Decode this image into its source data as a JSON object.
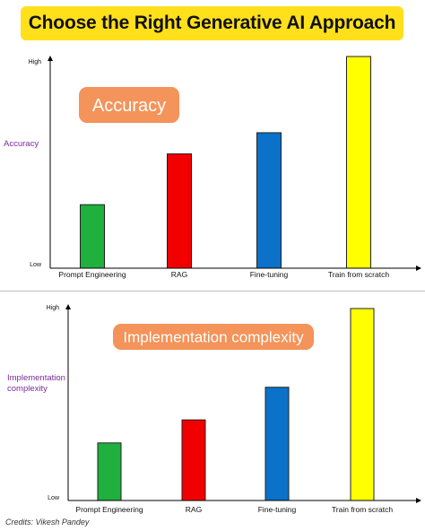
{
  "title": "Choose the Right Generative AI Approach",
  "credits": "Credits: Vikesh Pandey",
  "colors": {
    "title_background": "#ffe01b",
    "badge_background": "#f4935a",
    "axis_label": "#7a2a9a",
    "bars": [
      "#1fb03e",
      "#f20000",
      "#0b71c9",
      "#ffff00"
    ]
  },
  "chart_data": [
    {
      "type": "bar",
      "badge": "Accuracy",
      "ylabel": "Accuracy",
      "ytick_high": "High",
      "ytick_low": "Low",
      "categories": [
        "Prompt Engineering",
        "RAG",
        "Fine-tuning",
        "Train from scratch"
      ],
      "values": [
        30,
        54,
        64,
        100
      ],
      "ylim": [
        0,
        100
      ],
      "grid": false
    },
    {
      "type": "bar",
      "badge": "Implementation complexity",
      "ylabel": "Implementation\ncomplexity",
      "ytick_high": "High",
      "ytick_low": "Low",
      "categories": [
        "Prompt Engineering",
        "RAG",
        "Fine-tuning",
        "Train from scratch"
      ],
      "values": [
        30,
        42,
        59,
        100
      ],
      "ylim": [
        0,
        100
      ],
      "grid": false
    }
  ]
}
